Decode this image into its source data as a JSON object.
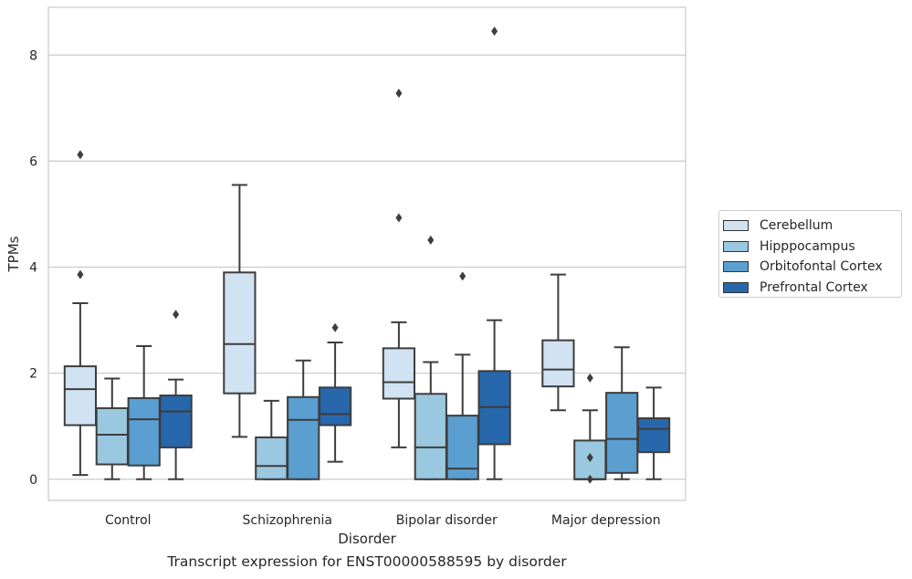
{
  "caption": "Transcript expression for ENST00000588595 by disorder",
  "chart_data": {
    "type": "box",
    "xlabel": "Disorder",
    "ylabel": "TPMs",
    "ylim": [
      -0.4,
      8.9
    ],
    "yticks": [
      0,
      2,
      4,
      6,
      8
    ],
    "grid": "horizontal",
    "legend_position": "right",
    "categories": [
      "Control",
      "Schizophrenia",
      "Bipolar disorder",
      "Major depression"
    ],
    "series": [
      {
        "name": "Cerebellum",
        "color": "#d1e2f2",
        "boxes": [
          {
            "whislo": 0.08,
            "q1": 1.02,
            "med": 1.7,
            "q3": 2.13,
            "whishi": 3.32,
            "fliers": [
              3.86,
              6.12
            ]
          },
          {
            "whislo": 0.8,
            "q1": 1.62,
            "med": 2.55,
            "q3": 3.9,
            "whishi": 5.55,
            "fliers": []
          },
          {
            "whislo": 0.6,
            "q1": 1.52,
            "med": 1.83,
            "q3": 2.47,
            "whishi": 2.96,
            "fliers": [
              4.93,
              7.28
            ]
          },
          {
            "whislo": 1.3,
            "q1": 1.75,
            "med": 2.07,
            "q3": 2.62,
            "whishi": 3.86,
            "fliers": []
          }
        ]
      },
      {
        "name": "Hipppocampus",
        "color": "#9ac8e0",
        "boxes": [
          {
            "whislo": 0.0,
            "q1": 0.28,
            "med": 0.84,
            "q3": 1.34,
            "whishi": 1.9,
            "fliers": []
          },
          {
            "whislo": 0.0,
            "q1": 0.0,
            "med": 0.25,
            "q3": 0.79,
            "whishi": 1.48,
            "fliers": []
          },
          {
            "whislo": 0.0,
            "q1": 0.0,
            "med": 0.6,
            "q3": 1.61,
            "whishi": 2.21,
            "fliers": [
              4.51
            ]
          },
          {
            "whislo": 0.0,
            "q1": 0.0,
            "med": 0.0,
            "q3": 0.73,
            "whishi": 1.3,
            "fliers": [
              0.0,
              0.41,
              1.91
            ]
          }
        ]
      },
      {
        "name": "Orbitofontal Cortex",
        "color": "#5a9fcf",
        "boxes": [
          {
            "whislo": 0.0,
            "q1": 0.26,
            "med": 1.13,
            "q3": 1.53,
            "whishi": 2.51,
            "fliers": []
          },
          {
            "whislo": 0.0,
            "q1": 0.0,
            "med": 1.12,
            "q3": 1.55,
            "whishi": 2.24,
            "fliers": []
          },
          {
            "whislo": 0.0,
            "q1": 0.0,
            "med": 0.2,
            "q3": 1.2,
            "whishi": 2.35,
            "fliers": [
              3.83
            ]
          },
          {
            "whislo": 0.0,
            "q1": 0.12,
            "med": 0.76,
            "q3": 1.63,
            "whishi": 2.49,
            "fliers": []
          }
        ]
      },
      {
        "name": "Prefrontal Cortex",
        "color": "#2767ab",
        "boxes": [
          {
            "whislo": 0.0,
            "q1": 0.6,
            "med": 1.28,
            "q3": 1.58,
            "whishi": 1.88,
            "fliers": [
              3.11
            ]
          },
          {
            "whislo": 0.33,
            "q1": 1.02,
            "med": 1.23,
            "q3": 1.73,
            "whishi": 2.58,
            "fliers": [
              2.86
            ]
          },
          {
            "whislo": 0.0,
            "q1": 0.66,
            "med": 1.36,
            "q3": 2.04,
            "whishi": 3.0,
            "fliers": [
              8.45
            ]
          },
          {
            "whislo": 0.0,
            "q1": 0.51,
            "med": 0.95,
            "q3": 1.15,
            "whishi": 1.73,
            "fliers": []
          }
        ]
      }
    ]
  }
}
